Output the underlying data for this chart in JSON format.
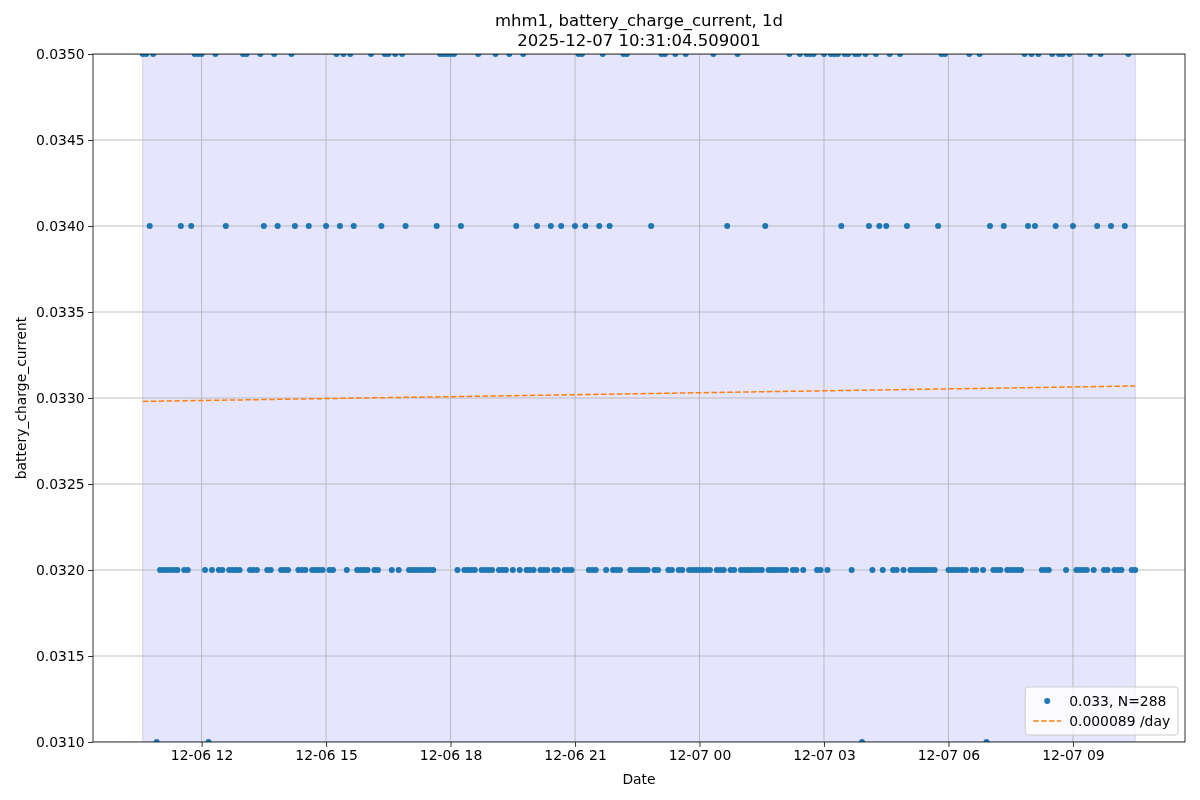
{
  "chart_data": {
    "type": "scatter",
    "title": "mhm1, battery_charge_current, 1d",
    "subtitle": "2025-12-07 10:31:04.509001",
    "xlabel": "Date",
    "ylabel": "battery_charge_current",
    "xlim": [
      "2025-12-06T09:23",
      "2025-12-07T11:42"
    ],
    "xticks": [
      {
        "value": "2025-12-06T12:00",
        "label": "12-06 12"
      },
      {
        "value": "2025-12-06T15:00",
        "label": "12-06 15"
      },
      {
        "value": "2025-12-06T18:00",
        "label": "12-06 18"
      },
      {
        "value": "2025-12-06T21:00",
        "label": "12-06 21"
      },
      {
        "value": "2025-12-07T00:00",
        "label": "12-07 00"
      },
      {
        "value": "2025-12-07T03:00",
        "label": "12-07 03"
      },
      {
        "value": "2025-12-07T06:00",
        "label": "12-07 06"
      },
      {
        "value": "2025-12-07T09:00",
        "label": "12-07 09"
      }
    ],
    "ylim": [
      0.031,
      0.035
    ],
    "yticks": [
      {
        "value": 0.031,
        "label": "0.0310"
      },
      0.0315,
      {
        "value": 0.032,
        "label": "0.0320"
      },
      0.0325,
      {
        "value": 0.033,
        "label": "0.0330"
      },
      0.0335,
      {
        "value": 0.034,
        "label": "0.0340"
      },
      0.0345,
      {
        "value": 0.035,
        "label": "0.0350"
      }
    ],
    "grid": true,
    "legend": "bottom right",
    "bands": [
      {
        "axis": "x",
        "from": "2025-12-06T10:35",
        "to": "2025-12-07T10:30",
        "color": "#e5e5fd"
      }
    ],
    "series": [
      {
        "name": "0.033, N=288",
        "color": "#1f77b4",
        "marker": "circle",
        "x": [
          "2025-12-06T10:35",
          "2025-12-06T10:40",
          "2025-12-06T10:45",
          "2025-12-06T10:50",
          "2025-12-06T10:55",
          "2025-12-06T11:00",
          "2025-12-06T11:05",
          "2025-12-06T11:10",
          "2025-12-06T11:15",
          "2025-12-06T11:20",
          "2025-12-06T11:25",
          "2025-12-06T11:30",
          "2025-12-06T11:35",
          "2025-12-06T11:40",
          "2025-12-06T11:45",
          "2025-12-06T11:50",
          "2025-12-06T11:55",
          "2025-12-06T12:00",
          "2025-12-06T12:05",
          "2025-12-06T12:10",
          "2025-12-06T12:15",
          "2025-12-06T12:20",
          "2025-12-06T12:25",
          "2025-12-06T12:30",
          "2025-12-06T12:35",
          "2025-12-06T12:40",
          "2025-12-06T12:45",
          "2025-12-06T12:50",
          "2025-12-06T12:55",
          "2025-12-06T13:00",
          "2025-12-06T13:05",
          "2025-12-06T13:10",
          "2025-12-06T13:15",
          "2025-12-06T13:20",
          "2025-12-06T13:25",
          "2025-12-06T13:30",
          "2025-12-06T13:35",
          "2025-12-06T13:40",
          "2025-12-06T13:45",
          "2025-12-06T13:50",
          "2025-12-06T13:55",
          "2025-12-06T14:00",
          "2025-12-06T14:05",
          "2025-12-06T14:10",
          "2025-12-06T14:15",
          "2025-12-06T14:20",
          "2025-12-06T14:25",
          "2025-12-06T14:30",
          "2025-12-06T14:35",
          "2025-12-06T14:40",
          "2025-12-06T14:45",
          "2025-12-06T14:50",
          "2025-12-06T14:55",
          "2025-12-06T15:00",
          "2025-12-06T15:05",
          "2025-12-06T15:10",
          "2025-12-06T15:15",
          "2025-12-06T15:20",
          "2025-12-06T15:25",
          "2025-12-06T15:30",
          "2025-12-06T15:35",
          "2025-12-06T15:40",
          "2025-12-06T15:45",
          "2025-12-06T15:50",
          "2025-12-06T15:55",
          "2025-12-06T16:00",
          "2025-12-06T16:05",
          "2025-12-06T16:10",
          "2025-12-06T16:15",
          "2025-12-06T16:20",
          "2025-12-06T16:25",
          "2025-12-06T16:30",
          "2025-12-06T16:35",
          "2025-12-06T16:40",
          "2025-12-06T16:45",
          "2025-12-06T16:50",
          "2025-12-06T16:55",
          "2025-12-06T17:00",
          "2025-12-06T17:05",
          "2025-12-06T17:10",
          "2025-12-06T17:15",
          "2025-12-06T17:20",
          "2025-12-06T17:25",
          "2025-12-06T17:30",
          "2025-12-06T17:35",
          "2025-12-06T17:40",
          "2025-12-06T17:45",
          "2025-12-06T17:50",
          "2025-12-06T17:55",
          "2025-12-06T18:00",
          "2025-12-06T18:05",
          "2025-12-06T18:10",
          "2025-12-06T18:15",
          "2025-12-06T18:20",
          "2025-12-06T18:25",
          "2025-12-06T18:30",
          "2025-12-06T18:35",
          "2025-12-06T18:40",
          "2025-12-06T18:45",
          "2025-12-06T18:50",
          "2025-12-06T18:55",
          "2025-12-06T19:00",
          "2025-12-06T19:05",
          "2025-12-06T19:10",
          "2025-12-06T19:15",
          "2025-12-06T19:20",
          "2025-12-06T19:25",
          "2025-12-06T19:30",
          "2025-12-06T19:35",
          "2025-12-06T19:40",
          "2025-12-06T19:45",
          "2025-12-06T19:50",
          "2025-12-06T19:55",
          "2025-12-06T20:00",
          "2025-12-06T20:05",
          "2025-12-06T20:10",
          "2025-12-06T20:15",
          "2025-12-06T20:20",
          "2025-12-06T20:25",
          "2025-12-06T20:30",
          "2025-12-06T20:35",
          "2025-12-06T20:40",
          "2025-12-06T20:45",
          "2025-12-06T20:50",
          "2025-12-06T20:55",
          "2025-12-06T21:00",
          "2025-12-06T21:05",
          "2025-12-06T21:10",
          "2025-12-06T21:15",
          "2025-12-06T21:20",
          "2025-12-06T21:25",
          "2025-12-06T21:30",
          "2025-12-06T21:35",
          "2025-12-06T21:40",
          "2025-12-06T21:45",
          "2025-12-06T21:50",
          "2025-12-06T21:55",
          "2025-12-06T22:00",
          "2025-12-06T22:05",
          "2025-12-06T22:10",
          "2025-12-06T22:15",
          "2025-12-06T22:20",
          "2025-12-06T22:25",
          "2025-12-06T22:30",
          "2025-12-06T22:35",
          "2025-12-06T22:40",
          "2025-12-06T22:45",
          "2025-12-06T22:50",
          "2025-12-06T22:55",
          "2025-12-06T23:00",
          "2025-12-06T23:05",
          "2025-12-06T23:10",
          "2025-12-06T23:15",
          "2025-12-06T23:20",
          "2025-12-06T23:25",
          "2025-12-06T23:30",
          "2025-12-06T23:35",
          "2025-12-06T23:40",
          "2025-12-06T23:45",
          "2025-12-06T23:50",
          "2025-12-06T23:55",
          "2025-12-07T00:00",
          "2025-12-07T00:05",
          "2025-12-07T00:10",
          "2025-12-07T00:15",
          "2025-12-07T00:20",
          "2025-12-07T00:25",
          "2025-12-07T00:30",
          "2025-12-07T00:35",
          "2025-12-07T00:40",
          "2025-12-07T00:45",
          "2025-12-07T00:50",
          "2025-12-07T00:55",
          "2025-12-07T01:00",
          "2025-12-07T01:05",
          "2025-12-07T01:10",
          "2025-12-07T01:15",
          "2025-12-07T01:20",
          "2025-12-07T01:25",
          "2025-12-07T01:30",
          "2025-12-07T01:35",
          "2025-12-07T01:40",
          "2025-12-07T01:45",
          "2025-12-07T01:50",
          "2025-12-07T01:55",
          "2025-12-07T02:00",
          "2025-12-07T02:05",
          "2025-12-07T02:10",
          "2025-12-07T02:15",
          "2025-12-07T02:20",
          "2025-12-07T02:25",
          "2025-12-07T02:30",
          "2025-12-07T02:35",
          "2025-12-07T02:40",
          "2025-12-07T02:45",
          "2025-12-07T02:50",
          "2025-12-07T02:55",
          "2025-12-07T03:00",
          "2025-12-07T03:05",
          "2025-12-07T03:10",
          "2025-12-07T03:15",
          "2025-12-07T03:20",
          "2025-12-07T03:25",
          "2025-12-07T03:30",
          "2025-12-07T03:35",
          "2025-12-07T03:40",
          "2025-12-07T03:45",
          "2025-12-07T03:50",
          "2025-12-07T03:55",
          "2025-12-07T04:00",
          "2025-12-07T04:05",
          "2025-12-07T04:10",
          "2025-12-07T04:15",
          "2025-12-07T04:20",
          "2025-12-07T04:25",
          "2025-12-07T04:30",
          "2025-12-07T04:35",
          "2025-12-07T04:40",
          "2025-12-07T04:45",
          "2025-12-07T04:50",
          "2025-12-07T04:55",
          "2025-12-07T05:00",
          "2025-12-07T05:05",
          "2025-12-07T05:10",
          "2025-12-07T05:15",
          "2025-12-07T05:20",
          "2025-12-07T05:25",
          "2025-12-07T05:30",
          "2025-12-07T05:35",
          "2025-12-07T05:40",
          "2025-12-07T05:45",
          "2025-12-07T05:50",
          "2025-12-07T05:55",
          "2025-12-07T06:00",
          "2025-12-07T06:05",
          "2025-12-07T06:10",
          "2025-12-07T06:15",
          "2025-12-07T06:20",
          "2025-12-07T06:25",
          "2025-12-07T06:30",
          "2025-12-07T06:35",
          "2025-12-07T06:40",
          "2025-12-07T06:45",
          "2025-12-07T06:50",
          "2025-12-07T06:55",
          "2025-12-07T07:00",
          "2025-12-07T07:05",
          "2025-12-07T07:10",
          "2025-12-07T07:15",
          "2025-12-07T07:20",
          "2025-12-07T07:25",
          "2025-12-07T07:30",
          "2025-12-07T07:35",
          "2025-12-07T07:40",
          "2025-12-07T07:45",
          "2025-12-07T07:50",
          "2025-12-07T07:55",
          "2025-12-07T08:00",
          "2025-12-07T08:05",
          "2025-12-07T08:10",
          "2025-12-07T08:15",
          "2025-12-07T08:20",
          "2025-12-07T08:25",
          "2025-12-07T08:30",
          "2025-12-07T08:35",
          "2025-12-07T08:40",
          "2025-12-07T08:45",
          "2025-12-07T08:50",
          "2025-12-07T08:55",
          "2025-12-07T09:00",
          "2025-12-07T09:05",
          "2025-12-07T09:10",
          "2025-12-07T09:15",
          "2025-12-07T09:20",
          "2025-12-07T09:25",
          "2025-12-07T09:30",
          "2025-12-07T09:35",
          "2025-12-07T09:40",
          "2025-12-07T09:45",
          "2025-12-07T09:50",
          "2025-12-07T09:55",
          "2025-12-07T10:00",
          "2025-12-07T10:05",
          "2025-12-07T10:10",
          "2025-12-07T10:15",
          "2025-12-07T10:20",
          "2025-12-07T10:25",
          "2025-12-07T10:30"
        ],
        "values": [
          0.035,
          0.035,
          0.034,
          0.035,
          0.031,
          0.032,
          0.032,
          0.032,
          0.032,
          0.032,
          0.032,
          0.034,
          0.032,
          0.032,
          0.034,
          0.035,
          0.035,
          0.035,
          0.032,
          0.031,
          0.032,
          0.035,
          0.032,
          0.032,
          0.034,
          0.032,
          0.032,
          0.032,
          0.032,
          0.035,
          0.035,
          0.032,
          0.032,
          0.032,
          0.035,
          0.034,
          0.032,
          0.032,
          0.035,
          0.034,
          0.032,
          0.032,
          0.032,
          0.035,
          0.034,
          0.032,
          0.032,
          0.032,
          0.034,
          0.032,
          0.032,
          0.032,
          0.032,
          0.034,
          0.032,
          0.032,
          0.035,
          0.034,
          0.035,
          0.032,
          0.035,
          0.034,
          0.032,
          0.032,
          0.032,
          0.032,
          0.035,
          0.032,
          0.032,
          0.034,
          0.035,
          0.035,
          0.032,
          0.035,
          0.032,
          0.035,
          0.034,
          0.032,
          0.032,
          0.032,
          0.032,
          0.032,
          0.032,
          0.032,
          0.032,
          0.034,
          0.035,
          0.035,
          0.035,
          0.035,
          0.035,
          0.032,
          0.034,
          0.032,
          0.032,
          0.032,
          0.032,
          0.035,
          0.032,
          0.032,
          0.032,
          0.032,
          0.035,
          0.032,
          0.032,
          0.032,
          0.035,
          0.032,
          0.034,
          0.032,
          0.035,
          0.032,
          0.032,
          0.032,
          0.034,
          0.032,
          0.032,
          0.032,
          0.034,
          0.032,
          0.032,
          0.034,
          0.032,
          0.032,
          0.032,
          0.034,
          0.035,
          0.035,
          0.034,
          0.032,
          0.032,
          0.032,
          0.034,
          0.035,
          0.032,
          0.034,
          0.032,
          0.032,
          0.032,
          0.035,
          0.035,
          0.032,
          0.032,
          0.032,
          0.032,
          0.032,
          0.032,
          0.034,
          0.032,
          0.032,
          0.035,
          0.035,
          0.032,
          0.032,
          0.035,
          0.032,
          0.032,
          0.035,
          0.032,
          0.032,
          0.032,
          0.032,
          0.032,
          0.032,
          0.032,
          0.035,
          0.032,
          0.032,
          0.032,
          0.034,
          0.032,
          0.032,
          0.035,
          0.032,
          0.032,
          0.032,
          0.032,
          0.032,
          0.032,
          0.032,
          0.034,
          0.032,
          0.032,
          0.032,
          0.032,
          0.032,
          0.032,
          0.035,
          0.032,
          0.032,
          0.035,
          0.032,
          0.035,
          0.035,
          0.035,
          0.032,
          0.032,
          0.035,
          0.032,
          0.035,
          0.035,
          0.035,
          0.034,
          0.035,
          0.035,
          0.032,
          0.035,
          0.035,
          0.031,
          0.035,
          0.034,
          0.032,
          0.035,
          0.034,
          0.032,
          0.034,
          0.035,
          0.032,
          0.032,
          0.035,
          0.032,
          0.034,
          0.032,
          0.032,
          0.032,
          0.032,
          0.032,
          0.032,
          0.032,
          0.032,
          0.034,
          0.035,
          0.035,
          0.032,
          0.032,
          0.032,
          0.032,
          0.032,
          0.032,
          0.035,
          0.032,
          0.032,
          0.035,
          0.032,
          0.031,
          0.034,
          0.032,
          0.032,
          0.032,
          0.034,
          0.032,
          0.032,
          0.032,
          0.032,
          0.032,
          0.035,
          0.034,
          0.035,
          0.034,
          0.035,
          0.032,
          0.032,
          0.032,
          0.035,
          0.034,
          0.035,
          0.035,
          0.032,
          0.035,
          0.034,
          0.032,
          0.032,
          0.032,
          0.032,
          0.035,
          0.032,
          0.034,
          0.035,
          0.032,
          0.032,
          0.034,
          0.032,
          0.032,
          0.032,
          0.034,
          0.035,
          0.032,
          0.032
        ]
      },
      {
        "name": "0.000089 /day",
        "type": "line",
        "color": "#ff7f0e",
        "line_style": "dashed",
        "marker": "none",
        "x": [
          "2025-12-06T10:35",
          "2025-12-07T10:30"
        ],
        "values": [
          0.03298,
          0.03307
        ]
      }
    ]
  }
}
